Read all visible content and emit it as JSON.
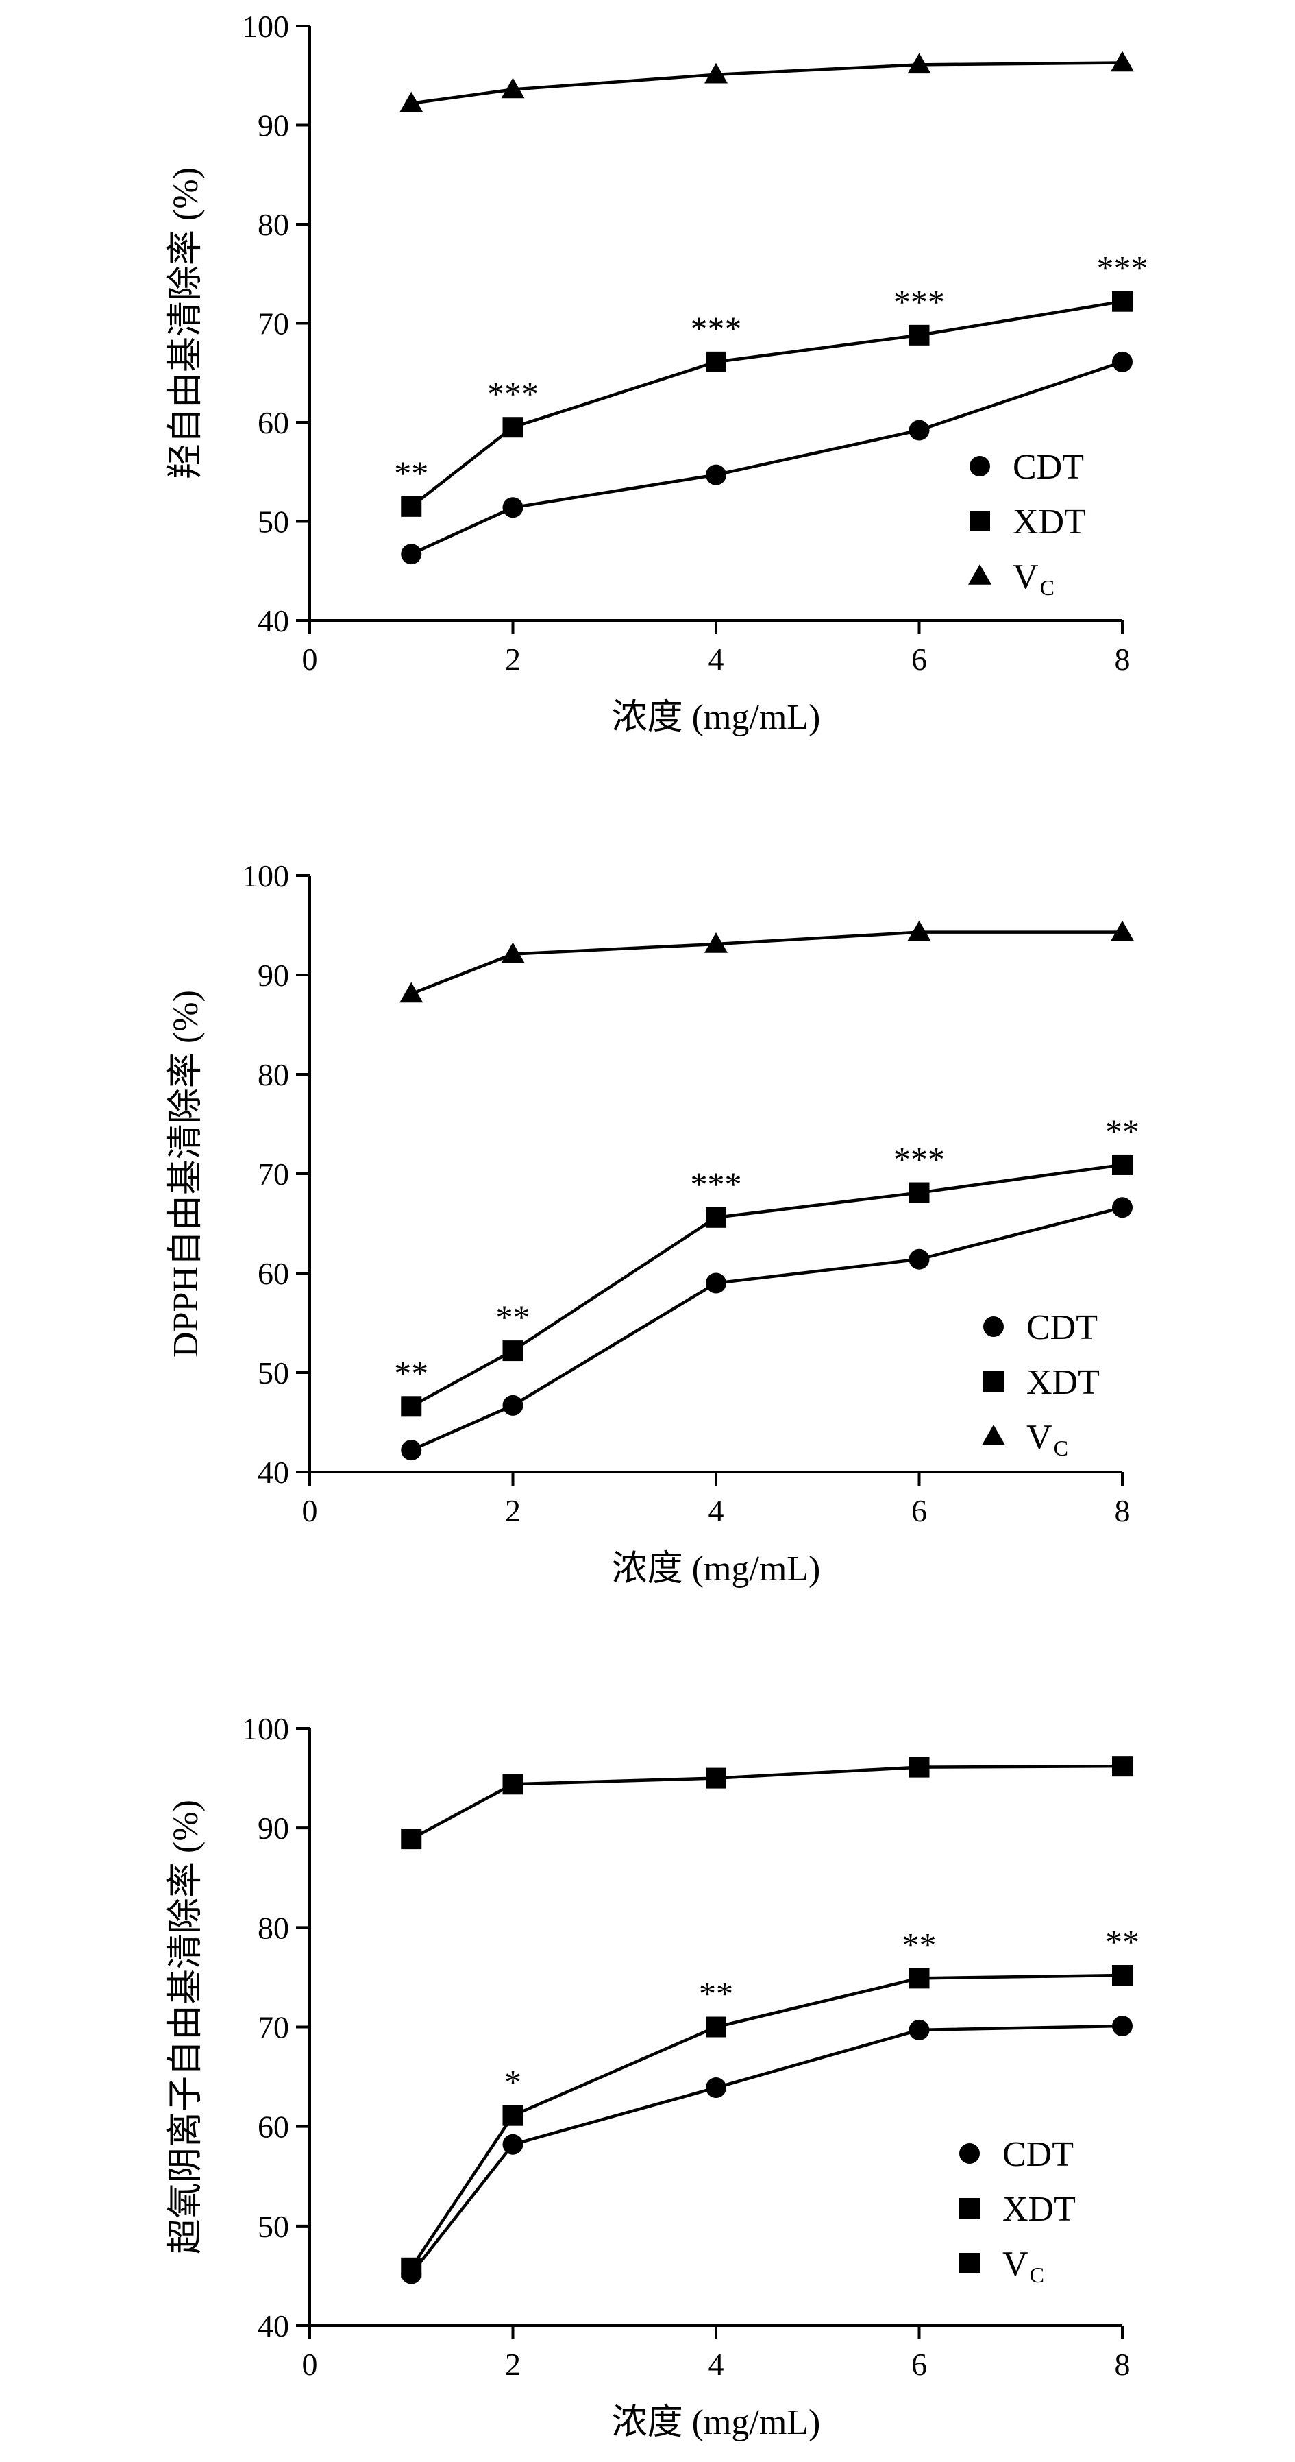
{
  "chart_data": [
    {
      "type": "line",
      "ylabel": "羟自由基清除率 (%)",
      "xlabel": "浓度 (mg/mL)",
      "xlim": [
        0,
        8
      ],
      "ylim": [
        40,
        100
      ],
      "xticks": [
        0,
        2,
        4,
        6,
        8
      ],
      "yticks": [
        40,
        50,
        60,
        70,
        80,
        90,
        100
      ],
      "x": [
        1,
        2,
        4,
        6,
        8
      ],
      "series": [
        {
          "name": "CDT",
          "marker": "circle",
          "values": [
            46.7,
            51.4,
            54.7,
            59.2,
            66.1
          ]
        },
        {
          "name": "XDT",
          "marker": "square",
          "values": [
            51.5,
            59.5,
            66.1,
            68.8,
            72.2
          ]
        },
        {
          "name": "V",
          "name_sub": "C",
          "marker": "triangle",
          "values": [
            92.2,
            93.6,
            95.1,
            96.1,
            96.3
          ]
        }
      ],
      "annotations": [
        {
          "x": 1,
          "y": 51.5,
          "text": "**"
        },
        {
          "x": 2,
          "y": 59.5,
          "text": "***"
        },
        {
          "x": 4,
          "y": 66.1,
          "text": "***"
        },
        {
          "x": 6,
          "y": 68.8,
          "text": "***"
        },
        {
          "x": 8,
          "y": 72.2,
          "text": "***"
        }
      ],
      "legend": "right"
    },
    {
      "type": "line",
      "ylabel": "DPPH自由基清除率 (%)",
      "xlabel": "浓度 (mg/mL)",
      "xlim": [
        0,
        8
      ],
      "ylim": [
        40,
        100
      ],
      "xticks": [
        0,
        2,
        4,
        6,
        8
      ],
      "yticks": [
        40,
        50,
        60,
        70,
        80,
        90,
        100
      ],
      "x": [
        1,
        2,
        4,
        6,
        8
      ],
      "series": [
        {
          "name": "CDT",
          "marker": "circle",
          "values": [
            42.2,
            46.7,
            59.0,
            61.4,
            66.6
          ]
        },
        {
          "name": "XDT",
          "marker": "square",
          "values": [
            46.6,
            52.2,
            65.6,
            68.1,
            70.9
          ]
        },
        {
          "name": "V",
          "name_sub": "C",
          "marker": "triangle",
          "values": [
            88.1,
            92.1,
            93.1,
            94.3,
            94.3
          ]
        }
      ],
      "annotations": [
        {
          "x": 1,
          "y": 46.6,
          "text": "**"
        },
        {
          "x": 2,
          "y": 52.2,
          "text": "**"
        },
        {
          "x": 4,
          "y": 65.6,
          "text": "***"
        },
        {
          "x": 6,
          "y": 68.1,
          "text": "***"
        },
        {
          "x": 8,
          "y": 70.9,
          "text": "**"
        }
      ],
      "legend": "right"
    },
    {
      "type": "line",
      "ylabel": "超氧阴离子自由基清除率 (%)",
      "xlabel": "浓度 (mg/mL)",
      "xlim": [
        0,
        8
      ],
      "ylim": [
        40,
        100
      ],
      "xticks": [
        0,
        2,
        4,
        6,
        8
      ],
      "yticks": [
        40,
        50,
        60,
        70,
        80,
        90,
        100
      ],
      "x": [
        1,
        2,
        4,
        6,
        8
      ],
      "series": [
        {
          "name": "CDT",
          "marker": "circle",
          "values": [
            45.2,
            58.2,
            63.9,
            69.7,
            70.1
          ]
        },
        {
          "name": "XDT",
          "marker": "square",
          "values": [
            45.8,
            61.1,
            70.0,
            74.9,
            75.2
          ]
        },
        {
          "name": "V",
          "name_sub": "C",
          "marker": "square",
          "values": [
            88.9,
            94.4,
            95.0,
            96.1,
            96.2
          ]
        }
      ],
      "annotations": [
        {
          "x": 2,
          "y": 61.1,
          "text": "*"
        },
        {
          "x": 4,
          "y": 70.0,
          "text": "**"
        },
        {
          "x": 6,
          "y": 74.9,
          "text": "**"
        },
        {
          "x": 8,
          "y": 75.2,
          "text": "**"
        }
      ],
      "legend": "right"
    }
  ]
}
